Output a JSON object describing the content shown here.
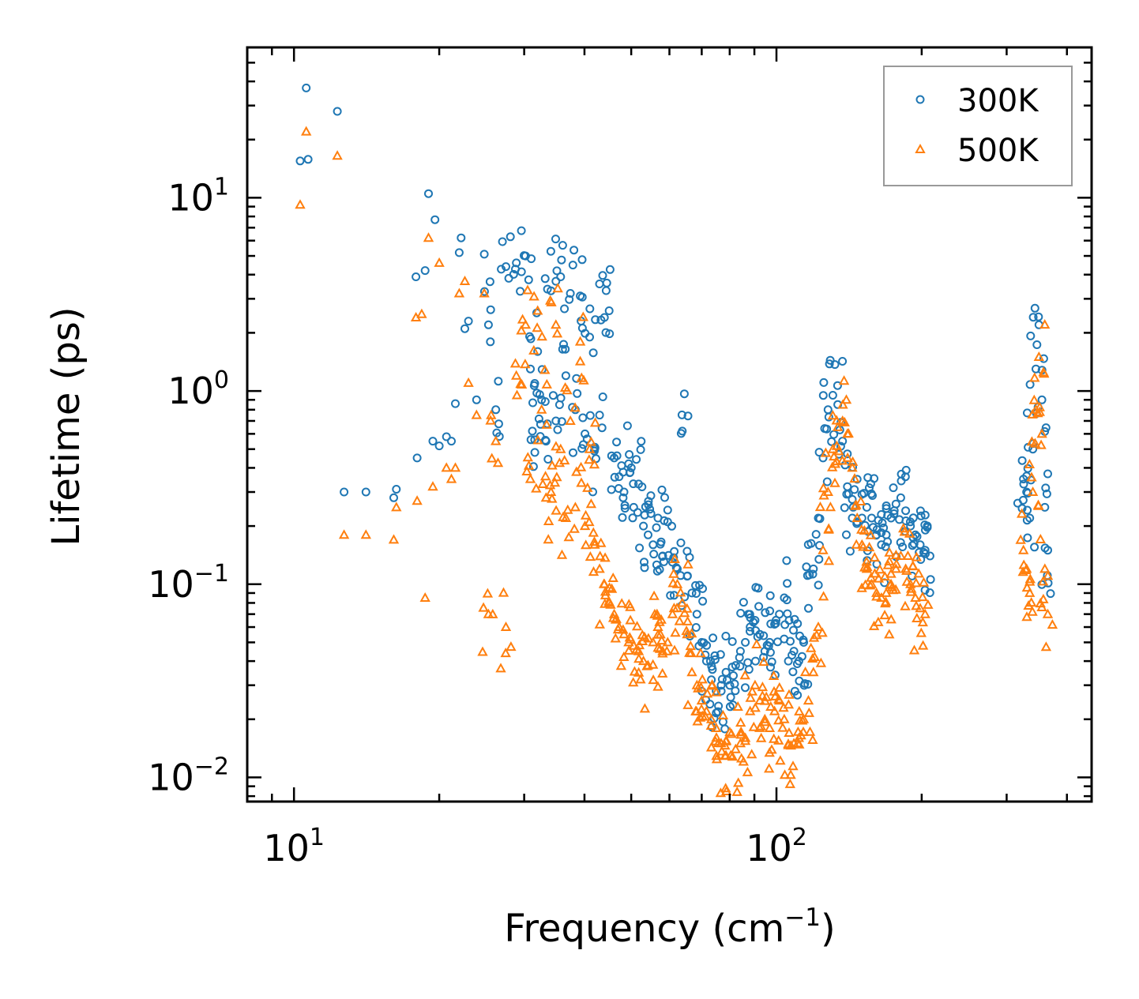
{
  "chart_data": {
    "type": "scatter",
    "x_scale": "log",
    "y_scale": "log",
    "xlim": [
      8.0,
      450.0
    ],
    "ylim": [
      0.0075,
      60.0
    ],
    "xlabel_main": "Frequency (cm",
    "xlabel_sup": "−1",
    "xlabel_tail": ")",
    "ylabel": "Lifetime (ps)",
    "x_ticks": [
      {
        "value": 10,
        "base": "10",
        "exp": "1"
      },
      {
        "value": 100,
        "base": "10",
        "exp": "2"
      }
    ],
    "y_ticks": [
      {
        "value": 10,
        "base": "10",
        "exp": "1"
      },
      {
        "value": 1,
        "base": "10",
        "exp": "0"
      },
      {
        "value": 0.1,
        "base": "10",
        "exp": "−1"
      },
      {
        "value": 0.01,
        "base": "10",
        "exp": "−2"
      }
    ],
    "legend_position": "top-right",
    "series": [
      {
        "name": "300K",
        "marker": "circle",
        "color": "#1f77b4",
        "x": [
          10.3,
          10.6,
          10.7,
          12.3,
          12.7,
          14.1,
          16.1,
          16.3,
          17.9,
          18.0,
          18.7,
          19.0,
          19.4,
          19.6,
          20.0,
          20.7,
          21.2,
          21.6,
          22.0,
          22.2,
          22.6,
          23.0,
          23.9,
          24.8,
          25.3,
          26.2,
          27.5,
          28.9,
          30.2,
          30.9,
          31.2,
          32.0,
          32.6,
          33.3,
          34.1,
          34.9,
          35.7,
          36.6,
          37.4,
          38.3,
          39.2,
          40.1,
          41.0,
          42.0,
          43.0,
          44.0,
          45.0,
          46.1,
          47.2,
          48.3,
          49.4,
          50.6,
          51.8,
          53.0,
          54.2,
          55.5,
          56.8,
          58.1,
          59.5,
          60.9,
          62.3,
          63.8,
          65.3,
          66.8,
          68.4,
          70.0,
          71.6,
          73.3,
          75.0,
          76.8,
          78.6,
          80.4,
          82.3,
          84.2,
          86.2,
          88.2,
          90.3,
          92.4,
          94.6,
          96.8,
          99.1,
          101.4,
          103.8,
          106.2,
          108.7,
          111.3,
          113.9,
          116.5,
          119.3,
          122.1,
          124.9,
          127.9,
          130.9,
          134.0,
          137.1,
          140.3,
          143.6,
          147.0,
          150.4,
          153.9,
          157.5,
          161.2,
          165.0,
          168.9,
          172.8,
          176.9,
          181.0,
          185.3,
          189.6,
          194.1,
          198.6,
          203.3,
          208.1,
          325.0,
          330.0,
          335.0,
          340.0,
          345.0,
          350.0,
          355.0,
          360.0,
          365.0
        ],
        "y": [
          15.5,
          37.0,
          15.8,
          28.0,
          0.3,
          0.3,
          0.28,
          0.31,
          3.9,
          0.45,
          4.2,
          10.5,
          0.55,
          7.7,
          0.52,
          0.58,
          0.55,
          0.86,
          5.2,
          6.2,
          2.1,
          2.3,
          0.9,
          5.1,
          2.2,
          0.8,
          4.4,
          4.6,
          5.0,
          1.3,
          0.62,
          1.6,
          0.9,
          0.55,
          3.3,
          0.7,
          3.9,
          1.2,
          3.2,
          0.8,
          3.1,
          0.6,
          1.9,
          0.5,
          0.75,
          2.4,
          2.6,
          0.45,
          0.36,
          0.3,
          0.42,
          0.25,
          0.33,
          0.2,
          0.18,
          0.16,
          0.22,
          0.14,
          0.21,
          0.13,
          0.12,
          0.62,
          0.11,
          0.09,
          0.07,
          0.05,
          0.04,
          0.032,
          0.028,
          0.03,
          0.035,
          0.026,
          0.038,
          0.045,
          0.05,
          0.06,
          0.065,
          0.055,
          0.045,
          0.05,
          0.062,
          0.07,
          0.085,
          0.065,
          0.045,
          0.04,
          0.05,
          0.075,
          0.12,
          0.22,
          0.45,
          0.8,
          0.95,
          0.85,
          0.55,
          0.32,
          0.22,
          0.21,
          0.22,
          0.25,
          0.22,
          0.18,
          0.16,
          0.18,
          0.22,
          0.26,
          0.28,
          0.24,
          0.2,
          0.18,
          0.16,
          0.15,
          0.14,
          0.35,
          0.3,
          0.22,
          0.5,
          1.3,
          2.2,
          0.9,
          0.25,
          0.15
        ]
      },
      {
        "name": "500K",
        "marker": "triangle",
        "color": "#ff7f0e",
        "x": [
          10.3,
          10.6,
          12.3,
          12.7,
          14.1,
          16.1,
          16.3,
          17.9,
          18.0,
          18.4,
          18.7,
          19.0,
          19.4,
          20.0,
          20.7,
          21.2,
          21.6,
          22.0,
          22.6,
          23.0,
          23.9,
          24.8,
          25.3,
          26.2,
          27.5,
          28.9,
          30.2,
          30.9,
          32.0,
          32.6,
          33.3,
          34.1,
          34.9,
          35.7,
          36.6,
          37.4,
          38.3,
          39.2,
          40.1,
          41.0,
          42.0,
          43.0,
          44.0,
          45.0,
          46.1,
          47.2,
          48.3,
          49.4,
          50.6,
          51.8,
          53.0,
          54.2,
          55.5,
          56.8,
          58.1,
          59.5,
          60.9,
          62.3,
          63.8,
          65.3,
          66.8,
          68.4,
          70.0,
          71.6,
          73.3,
          75.0,
          76.8,
          78.6,
          80.4,
          82.3,
          84.2,
          86.2,
          88.2,
          90.3,
          92.4,
          94.6,
          96.8,
          99.1,
          101.4,
          103.8,
          106.2,
          108.7,
          111.3,
          113.9,
          116.5,
          119.3,
          122.1,
          124.9,
          127.9,
          130.9,
          134.0,
          137.1,
          140.3,
          143.6,
          147.0,
          150.4,
          153.9,
          157.5,
          161.2,
          165.0,
          168.9,
          172.8,
          176.9,
          181.0,
          185.3,
          189.6,
          194.1,
          198.6,
          203.3,
          325.0,
          330.0,
          335.0,
          340.0,
          345.0,
          350.0,
          355.0,
          360.0,
          365.0
        ],
        "y": [
          9.2,
          22.0,
          16.5,
          0.18,
          0.18,
          0.17,
          0.25,
          2.4,
          0.27,
          2.5,
          0.085,
          6.2,
          0.32,
          4.6,
          0.4,
          0.35,
          0.4,
          3.2,
          3.7,
          1.1,
          0.75,
          3.2,
          0.07,
          0.55,
          0.06,
          1.2,
          2.2,
          0.35,
          2.6,
          0.8,
          0.28,
          0.3,
          2.2,
          0.5,
          0.22,
          0.7,
          0.25,
          1.8,
          0.2,
          0.5,
          0.16,
          0.12,
          0.1,
          0.08,
          0.07,
          0.06,
          0.055,
          0.05,
          0.048,
          0.045,
          0.04,
          0.038,
          0.05,
          0.06,
          0.045,
          0.05,
          0.07,
          0.1,
          0.08,
          0.055,
          0.035,
          0.03,
          0.025,
          0.022,
          0.02,
          0.018,
          0.015,
          0.013,
          0.013,
          0.014,
          0.015,
          0.016,
          0.022,
          0.03,
          0.025,
          0.02,
          0.018,
          0.022,
          0.025,
          0.02,
          0.017,
          0.015,
          0.016,
          0.02,
          0.025,
          0.035,
          0.06,
          0.15,
          0.3,
          0.5,
          0.65,
          0.7,
          0.6,
          0.4,
          0.22,
          0.16,
          0.12,
          0.1,
          0.09,
          0.085,
          0.09,
          0.1,
          0.12,
          0.14,
          0.12,
          0.1,
          0.085,
          0.075,
          0.07,
          0.15,
          0.12,
          0.09,
          0.3,
          0.8,
          1.5,
          0.6,
          0.12,
          0.07
        ]
      }
    ]
  }
}
